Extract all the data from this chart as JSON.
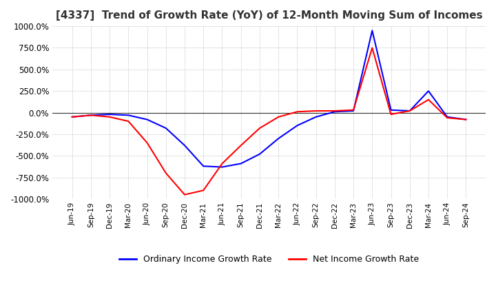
{
  "title": "[4337]  Trend of Growth Rate (YoY) of 12-Month Moving Sum of Incomes",
  "title_fontsize": 11,
  "ylim": [
    -1000,
    1000
  ],
  "yticks": [
    1000,
    750,
    500,
    250,
    0,
    -250,
    -500,
    -750,
    -1000
  ],
  "ytick_labels": [
    "1000.0%",
    "750.0%",
    "500.0%",
    "250.0%",
    "0.0%",
    "-250.0%",
    "-500.0%",
    "-750.0%",
    "-1000.0%"
  ],
  "ordinary_color": "#0000FF",
  "net_color": "#FF0000",
  "legend_labels": [
    "Ordinary Income Growth Rate",
    "Net Income Growth Rate"
  ],
  "background_color": "#FFFFFF",
  "grid_color": "#AAAAAA",
  "dates": [
    "Jun-19",
    "Sep-19",
    "Dec-19",
    "Mar-20",
    "Jun-20",
    "Sep-20",
    "Dec-20",
    "Mar-21",
    "Jun-21",
    "Sep-21",
    "Dec-21",
    "Mar-22",
    "Jun-22",
    "Sep-22",
    "Dec-22",
    "Mar-23",
    "Jun-23",
    "Sep-23",
    "Dec-23",
    "Mar-24",
    "Jun-24",
    "Sep-24"
  ],
  "ordinary_income_growth": [
    -50,
    -30,
    -20,
    -30,
    -80,
    -180,
    -380,
    -620,
    -630,
    -590,
    -480,
    -300,
    -150,
    -50,
    10,
    20,
    950,
    30,
    20,
    250,
    -50,
    -80
  ],
  "net_income_growth": [
    -50,
    -30,
    -50,
    -100,
    -350,
    -700,
    -950,
    -900,
    -590,
    -380,
    -180,
    -50,
    10,
    20,
    20,
    30,
    750,
    -20,
    20,
    150,
    -60,
    -80
  ]
}
